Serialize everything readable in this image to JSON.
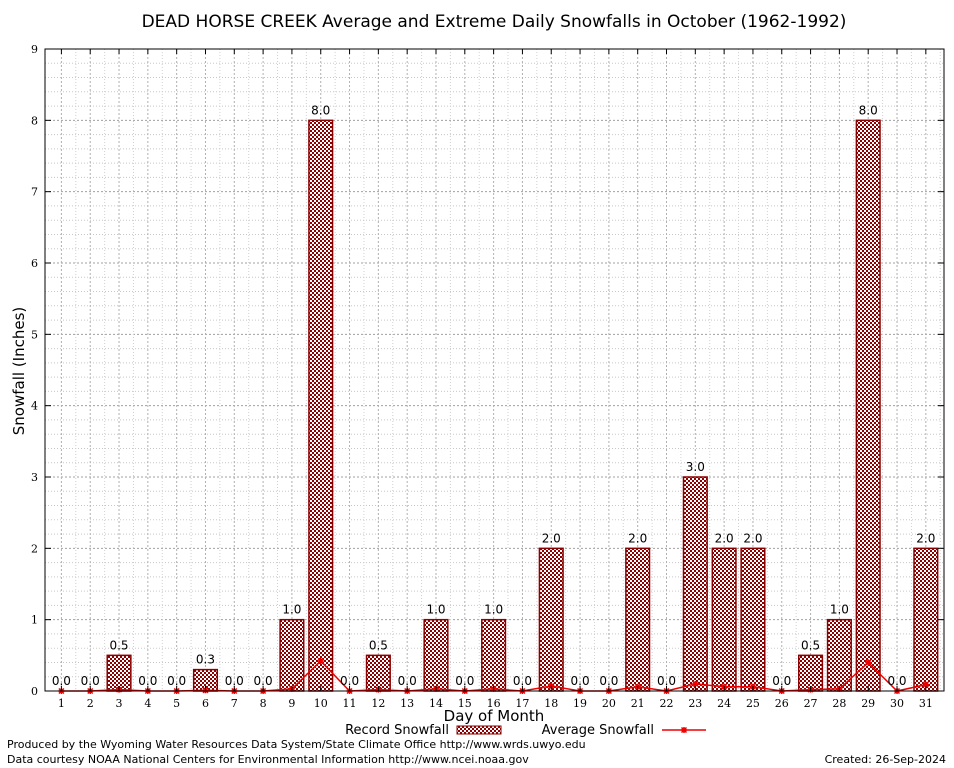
{
  "chart_data": {
    "type": "bar",
    "title": "DEAD HORSE CREEK Average and Extreme Daily Snowfalls in October (1962-1992)",
    "xlabel": "Day of Month",
    "ylabel": "Snowfall (Inches)",
    "ylim": [
      0,
      9
    ],
    "yticks": [
      "0",
      "1",
      "2",
      "3",
      "4",
      "5",
      "6",
      "7",
      "8",
      "9"
    ],
    "grid": true,
    "legend_position": "bottom",
    "categories": [
      "1",
      "2",
      "3",
      "4",
      "5",
      "6",
      "7",
      "8",
      "9",
      "10",
      "11",
      "12",
      "13",
      "14",
      "15",
      "16",
      "17",
      "18",
      "19",
      "20",
      "21",
      "22",
      "23",
      "24",
      "25",
      "26",
      "27",
      "28",
      "29",
      "30",
      "31"
    ],
    "series": [
      {
        "name": "Record Snowfall",
        "kind": "bar",
        "color": "#8b0000",
        "values": [
          0.0,
          0.0,
          0.5,
          0.0,
          0.0,
          0.3,
          0.0,
          0.0,
          1.0,
          8.0,
          0.0,
          0.5,
          0.0,
          1.0,
          0.0,
          1.0,
          0.0,
          2.0,
          0.0,
          0.0,
          2.0,
          0.0,
          3.0,
          2.0,
          2.0,
          0.0,
          0.5,
          1.0,
          8.0,
          0.0,
          2.0
        ],
        "labels": [
          "0.0",
          "0.0",
          "0.5",
          "0.0",
          "0.0",
          "0.3",
          "0.0",
          "0.0",
          "1.0",
          "8.0",
          "0.0",
          "0.5",
          "0.0",
          "1.0",
          "0.0",
          "1.0",
          "0.0",
          "2.0",
          "0.0",
          "0.0",
          "2.0",
          "0.0",
          "3.0",
          "2.0",
          "2.0",
          "0.0",
          "0.5",
          "1.0",
          "8.0",
          "0.0",
          "2.0"
        ]
      },
      {
        "name": "Average Snowfall",
        "kind": "line",
        "color": "#ee0000",
        "values": [
          0.0,
          0.0,
          0.02,
          0.0,
          0.0,
          0.01,
          0.0,
          0.0,
          0.03,
          0.42,
          0.0,
          0.02,
          0.0,
          0.03,
          0.0,
          0.03,
          0.0,
          0.07,
          0.0,
          0.0,
          0.06,
          0.0,
          0.1,
          0.06,
          0.06,
          0.0,
          0.02,
          0.03,
          0.4,
          0.0,
          0.09
        ]
      }
    ]
  },
  "footer": {
    "produced_by": "Produced by the Wyoming Water Resources Data System/State Climate Office http://www.wrds.uwyo.edu",
    "courtesy": "Data courtesy NOAA National Centers for Environmental Information http://www.ncei.noaa.gov",
    "created": "Created:  26-Sep-2024"
  }
}
